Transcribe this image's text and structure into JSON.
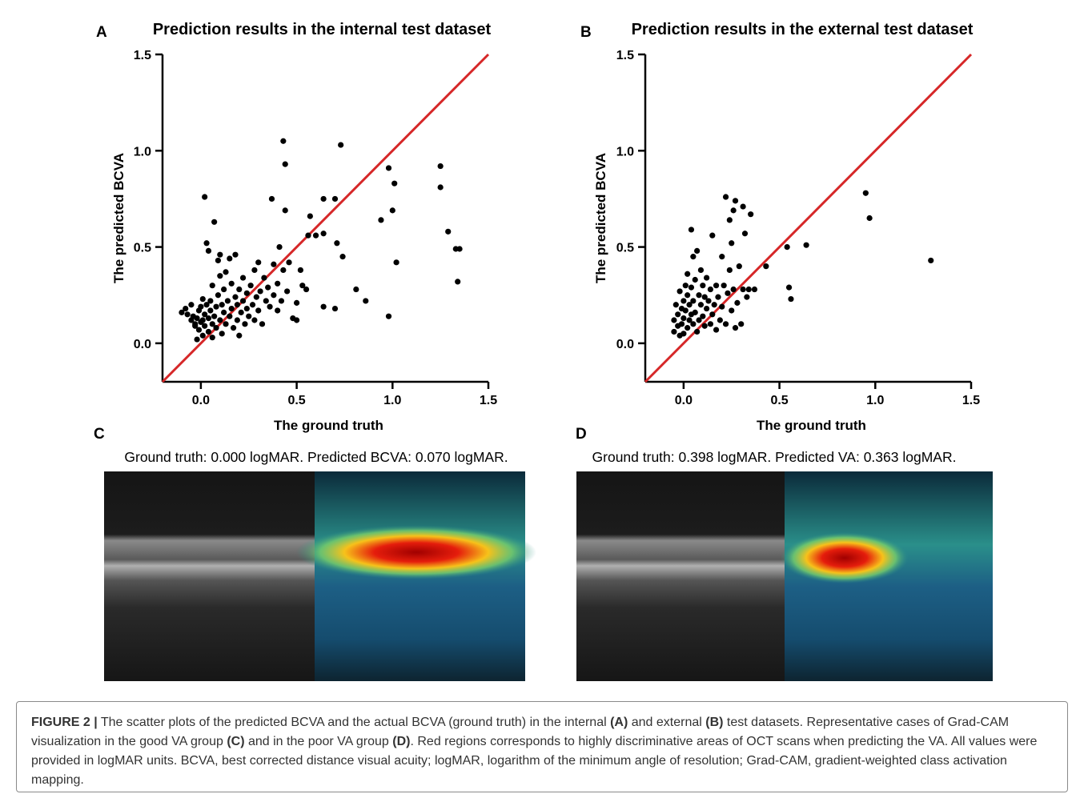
{
  "chart_data": [
    {
      "type": "scatter",
      "label": "A",
      "title": "Prediction results in the internal test dataset",
      "xlabel": "The ground truth",
      "ylabel": "The predicted BCVA",
      "color": "#000000",
      "x": [
        -0.1,
        -0.08,
        -0.07,
        -0.05,
        -0.05,
        -0.04,
        -0.03,
        -0.03,
        -0.02,
        -0.02,
        -0.01,
        -0.01,
        0,
        0,
        0.01,
        0.01,
        0.01,
        0.02,
        0.02,
        0.02,
        0.03,
        0.03,
        0.04,
        0.04,
        0.04,
        0.05,
        0.05,
        0.06,
        0.06,
        0.06,
        0.07,
        0.07,
        0.08,
        0.08,
        0.09,
        0.09,
        0.1,
        0.1,
        0.1,
        0.11,
        0.11,
        0.12,
        0.12,
        0.13,
        0.13,
        0.14,
        0.15,
        0.15,
        0.16,
        0.16,
        0.17,
        0.18,
        0.18,
        0.19,
        0.19,
        0.2,
        0.2,
        0.21,
        0.22,
        0.22,
        0.23,
        0.24,
        0.24,
        0.25,
        0.26,
        0.27,
        0.28,
        0.28,
        0.29,
        0.3,
        0.3,
        0.31,
        0.32,
        0.33,
        0.34,
        0.35,
        0.36,
        0.37,
        0.38,
        0.38,
        0.4,
        0.4,
        0.41,
        0.42,
        0.43,
        0.43,
        0.44,
        0.44,
        0.45,
        0.46,
        0.48,
        0.5,
        0.5,
        0.52,
        0.53,
        0.55,
        0.56,
        0.57,
        0.6,
        0.64,
        0.64,
        0.64,
        0.7,
        0.7,
        0.71,
        0.73,
        0.74,
        0.81,
        0.86,
        0.94,
        0.98,
        0.98,
        1.0,
        1.01,
        1.02,
        1.25,
        1.25,
        1.29,
        1.33,
        1.35,
        1.34
      ],
      "values": [
        0.16,
        0.18,
        0.15,
        0.12,
        0.2,
        0.14,
        0.09,
        0.1,
        0.02,
        0.13,
        0.07,
        0.17,
        0.11,
        0.19,
        0.04,
        0.12,
        0.23,
        0.76,
        0.15,
        0.09,
        0.52,
        0.2,
        0.13,
        0.06,
        0.48,
        0.17,
        0.22,
        0.03,
        0.1,
        0.3,
        0.63,
        0.14,
        0.19,
        0.08,
        0.25,
        0.43,
        0.12,
        0.46,
        0.35,
        0.2,
        0.05,
        0.16,
        0.28,
        0.1,
        0.37,
        0.22,
        0.14,
        0.44,
        0.18,
        0.31,
        0.08,
        0.24,
        0.46,
        0.12,
        0.2,
        0.04,
        0.28,
        0.16,
        0.22,
        0.34,
        0.1,
        0.26,
        0.18,
        0.14,
        0.3,
        0.2,
        0.12,
        0.38,
        0.24,
        0.17,
        0.42,
        0.27,
        0.1,
        0.34,
        0.22,
        0.29,
        0.19,
        0.75,
        0.25,
        0.41,
        0.17,
        0.31,
        0.5,
        0.22,
        0.38,
        1.05,
        0.93,
        0.69,
        0.27,
        0.42,
        0.13,
        0.12,
        0.21,
        0.38,
        0.3,
        0.28,
        0.56,
        0.66,
        0.56,
        0.75,
        0.57,
        0.19,
        0.75,
        0.18,
        0.52,
        1.03,
        0.45,
        0.28,
        0.22,
        0.64,
        0.91,
        0.14,
        0.69,
        0.83,
        0.42,
        0.92,
        0.81,
        0.58,
        0.49,
        0.49,
        0.32
      ],
      "xlim": [
        -0.2,
        1.5
      ],
      "ylim": [
        -0.2,
        1.5
      ],
      "xticks": [
        {
          "value": 0,
          "label": "0.0"
        },
        0.5,
        {
          "value": 1,
          "label": "1.0"
        },
        1.5
      ],
      "yticks": [
        {
          "value": 0,
          "label": "0.0"
        },
        0.5,
        {
          "value": 1,
          "label": "1.0"
        },
        1.5
      ],
      "identity_line": {
        "color": "#d62728"
      }
    },
    {
      "type": "scatter",
      "label": "B",
      "title": "Prediction results in the external test dataset",
      "xlabel": "The ground truth",
      "ylabel": "The predicted BCVA",
      "color": "#000000",
      "x": [
        -0.05,
        -0.05,
        -0.04,
        -0.03,
        -0.03,
        -0.02,
        -0.02,
        -0.01,
        -0.01,
        0,
        0,
        0,
        0.01,
        0.01,
        0.02,
        0.02,
        0.02,
        0.03,
        0.03,
        0.04,
        0.04,
        0.04,
        0.05,
        0.05,
        0.05,
        0.06,
        0.06,
        0.07,
        0.07,
        0.08,
        0.08,
        0.09,
        0.09,
        0.1,
        0.1,
        0.11,
        0.11,
        0.12,
        0.12,
        0.13,
        0.14,
        0.14,
        0.15,
        0.15,
        0.16,
        0.17,
        0.17,
        0.18,
        0.19,
        0.2,
        0.2,
        0.21,
        0.22,
        0.22,
        0.23,
        0.24,
        0.24,
        0.25,
        0.25,
        0.26,
        0.26,
        0.27,
        0.27,
        0.28,
        0.29,
        0.3,
        0.31,
        0.31,
        0.32,
        0.33,
        0.34,
        0.35,
        0.37,
        0.43,
        0.54,
        0.55,
        0.56,
        0.64,
        0.95,
        0.97,
        1.29
      ],
      "values": [
        0.12,
        0.06,
        0.2,
        0.15,
        0.09,
        0.04,
        0.27,
        0.18,
        0.1,
        0.13,
        0.22,
        0.05,
        0.3,
        0.17,
        0.08,
        0.25,
        0.36,
        0.12,
        0.2,
        0.15,
        0.59,
        0.29,
        0.1,
        0.45,
        0.22,
        0.33,
        0.16,
        0.48,
        0.06,
        0.25,
        0.12,
        0.2,
        0.38,
        0.14,
        0.3,
        0.09,
        0.24,
        0.18,
        0.34,
        0.22,
        0.1,
        0.28,
        0.15,
        0.56,
        0.2,
        0.07,
        0.3,
        0.24,
        0.12,
        0.45,
        0.19,
        0.3,
        0.76,
        0.1,
        0.26,
        0.64,
        0.38,
        0.52,
        0.17,
        0.69,
        0.28,
        0.74,
        0.08,
        0.21,
        0.4,
        0.1,
        0.71,
        0.28,
        0.57,
        0.24,
        0.28,
        0.67,
        0.28,
        0.4,
        0.5,
        0.29,
        0.23,
        0.51,
        0.78,
        0.65,
        0.43
      ],
      "xlim": [
        -0.2,
        1.5
      ],
      "ylim": [
        -0.2,
        1.5
      ],
      "xticks": [
        {
          "value": 0,
          "label": "0.0"
        },
        0.5,
        {
          "value": 1,
          "label": "1.0"
        },
        1.5
      ],
      "yticks": [
        {
          "value": 0,
          "label": "0.0"
        },
        0.5,
        {
          "value": 1,
          "label": "1.0"
        },
        1.5
      ],
      "identity_line": {
        "color": "#d62728"
      }
    }
  ],
  "panels": [
    {
      "label": "C",
      "caption": "Ground truth: 0.000 logMAR. Predicted BCVA: 0.070 logMAR."
    },
    {
      "label": "D",
      "caption": "Ground truth: 0.398 logMAR. Predicted VA: 0.363 logMAR."
    }
  ],
  "figure_caption": [
    {
      "text": "FIGURE 2 |",
      "bold": true
    },
    {
      "text": " The scatter plots of the predicted BCVA and the actual BCVA (ground truth) in the internal ",
      "bold": false
    },
    {
      "text": "(A)",
      "bold": true
    },
    {
      "text": " and external ",
      "bold": false
    },
    {
      "text": "(B)",
      "bold": true
    },
    {
      "text": " test datasets. Representative cases of Grad-CAM visualization in the good VA group ",
      "bold": false
    },
    {
      "text": "(C)",
      "bold": true
    },
    {
      "text": " and in the poor VA group ",
      "bold": false
    },
    {
      "text": "(D)",
      "bold": true
    },
    {
      "text": ". Red regions corresponds to highly discriminative areas of OCT scans when predicting the VA. All values were provided in logMAR units. BCVA, best corrected distance visual acuity; logMAR, logarithm of the minimum angle of resolution; Grad-CAM, gradient-weighted class activation mapping.",
      "bold": false
    }
  ]
}
